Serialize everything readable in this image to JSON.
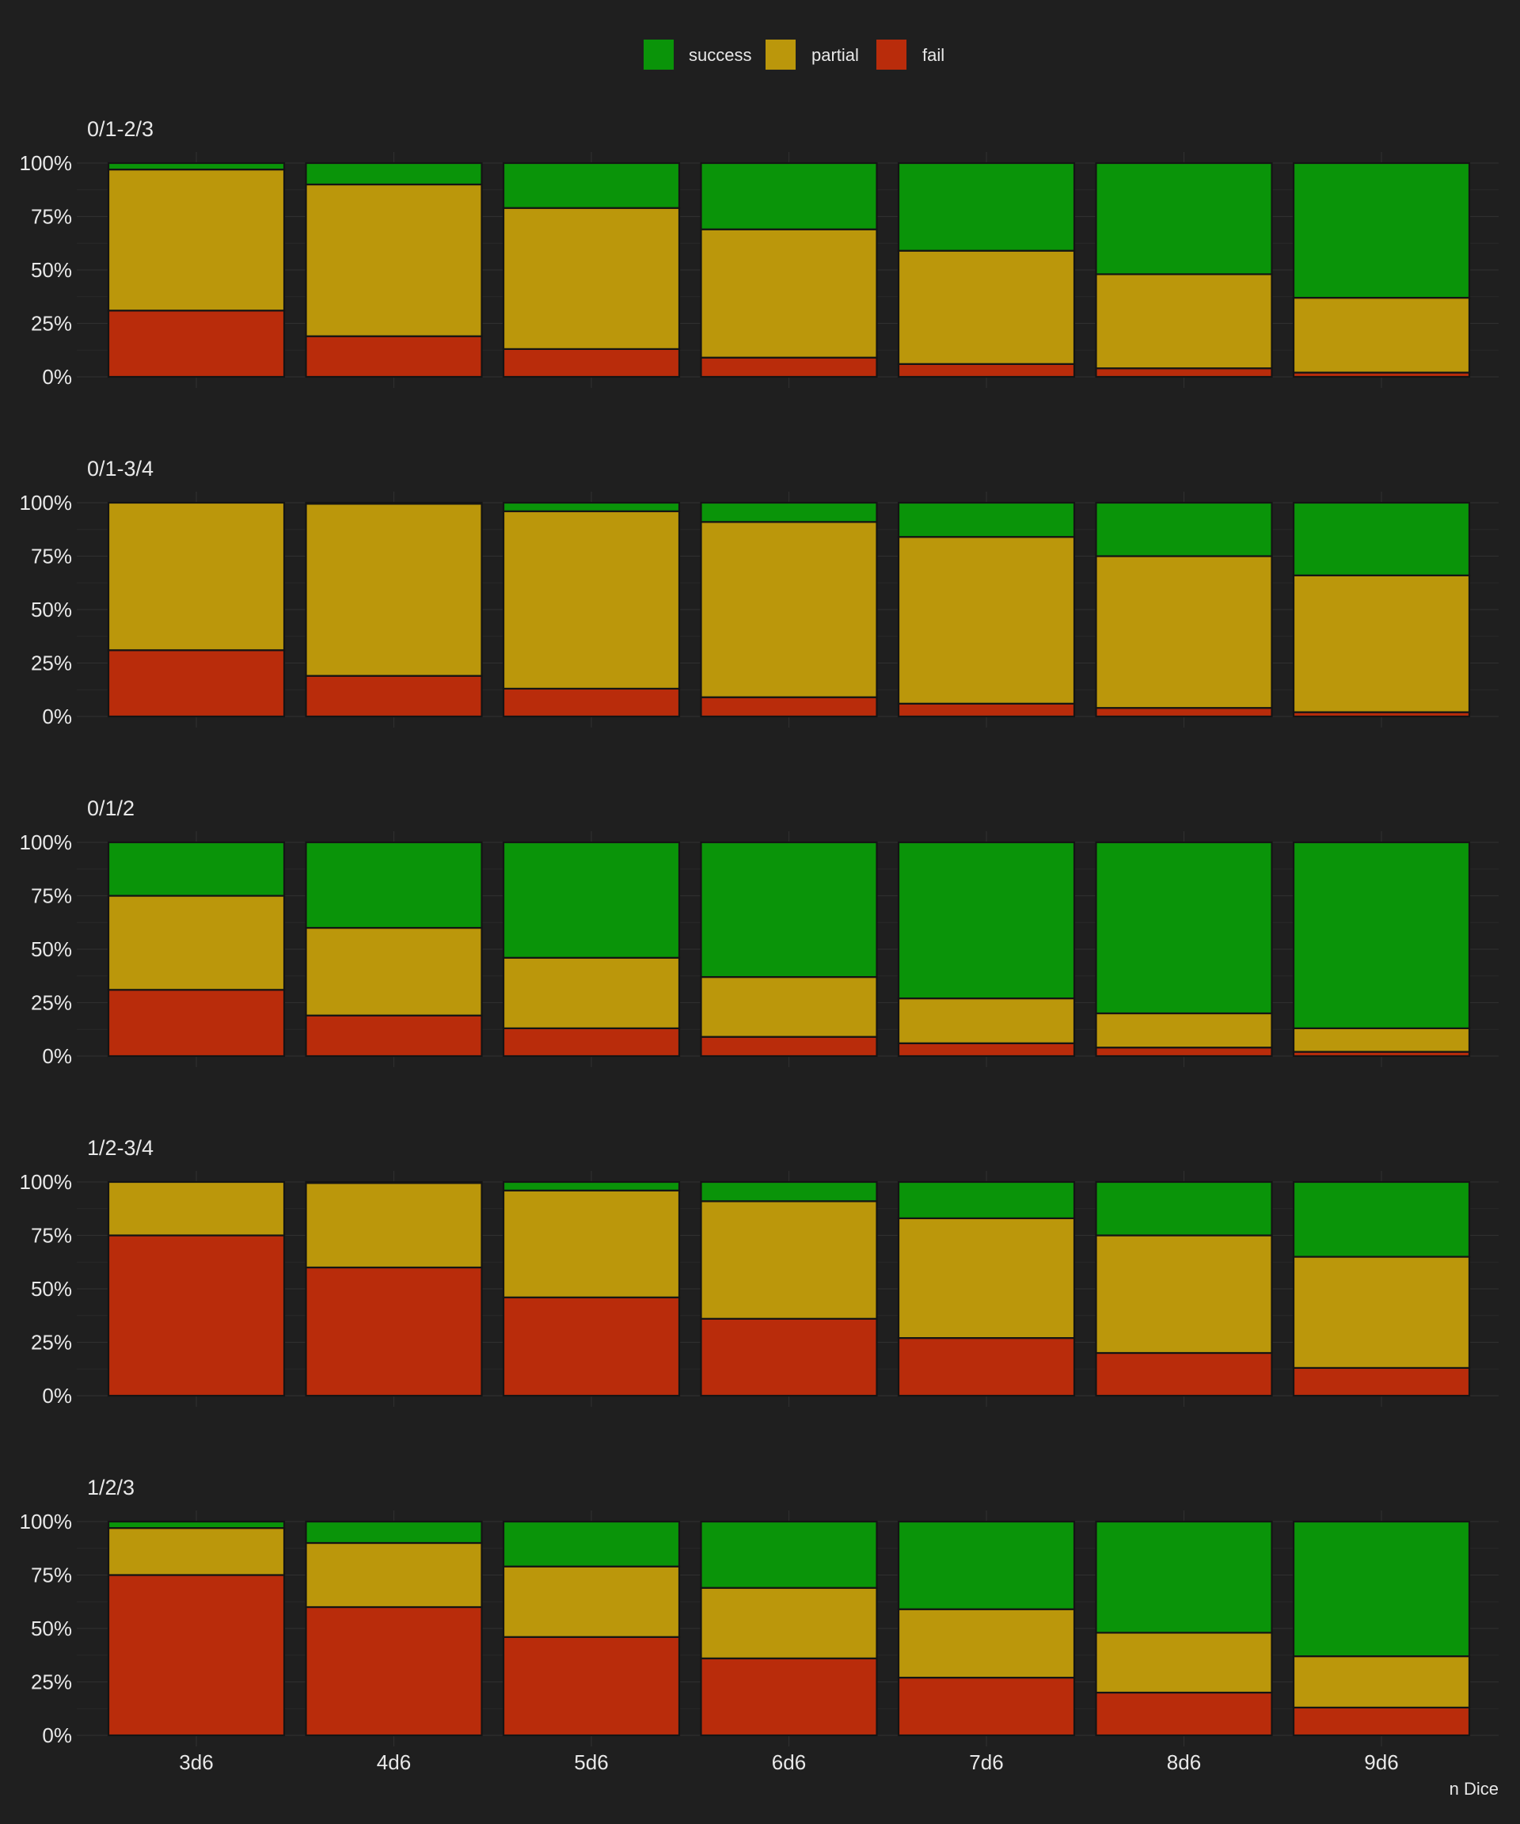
{
  "chart_data": {
    "type": "bar",
    "stacked": true,
    "categories": [
      "3d6",
      "4d6",
      "5d6",
      "6d6",
      "7d6",
      "8d6",
      "9d6"
    ],
    "xlabel": "n Dice",
    "ylabel": "",
    "ylim": [
      0,
      1
    ],
    "y_ticks": [
      "0%",
      "25%",
      "50%",
      "75%",
      "100%"
    ],
    "grid": true,
    "legend": {
      "position": "top",
      "entries": [
        {
          "name": "success",
          "color": "#0a9409"
        },
        {
          "name": "partial",
          "color": "#bb970b"
        },
        {
          "name": "fail",
          "color": "#b92c0b"
        }
      ]
    },
    "panels": [
      {
        "title": "0/1-2/3",
        "series": [
          {
            "name": "fail",
            "values": [
              0.31,
              0.19,
              0.13,
              0.09,
              0.06,
              0.04,
              0.02
            ]
          },
          {
            "name": "partial",
            "values": [
              0.66,
              0.71,
              0.66,
              0.6,
              0.53,
              0.44,
              0.35
            ]
          },
          {
            "name": "success",
            "values": [
              0.03,
              0.1,
              0.21,
              0.31,
              0.41,
              0.52,
              0.63
            ]
          }
        ]
      },
      {
        "title": "0/1-3/4",
        "series": [
          {
            "name": "fail",
            "values": [
              0.31,
              0.19,
              0.13,
              0.09,
              0.06,
              0.04,
              0.02
            ]
          },
          {
            "name": "partial",
            "values": [
              0.69,
              0.805,
              0.83,
              0.82,
              0.78,
              0.71,
              0.64
            ]
          },
          {
            "name": "success",
            "values": [
              0.0,
              0.005,
              0.04,
              0.09,
              0.16,
              0.25,
              0.34
            ]
          }
        ]
      },
      {
        "title": "0/1/2",
        "series": [
          {
            "name": "fail",
            "values": [
              0.31,
              0.19,
              0.13,
              0.09,
              0.06,
              0.04,
              0.02
            ]
          },
          {
            "name": "partial",
            "values": [
              0.44,
              0.41,
              0.33,
              0.28,
              0.21,
              0.16,
              0.11
            ]
          },
          {
            "name": "success",
            "values": [
              0.25,
              0.4,
              0.54,
              0.63,
              0.73,
              0.8,
              0.87
            ]
          }
        ]
      },
      {
        "title": "1/2-3/4",
        "series": [
          {
            "name": "fail",
            "values": [
              0.75,
              0.6,
              0.46,
              0.36,
              0.27,
              0.2,
              0.13
            ]
          },
          {
            "name": "partial",
            "values": [
              0.25,
              0.395,
              0.5,
              0.55,
              0.56,
              0.55,
              0.52
            ]
          },
          {
            "name": "success",
            "values": [
              0.0,
              0.005,
              0.04,
              0.09,
              0.17,
              0.25,
              0.35
            ]
          }
        ]
      },
      {
        "title": "1/2/3",
        "series": [
          {
            "name": "fail",
            "values": [
              0.75,
              0.6,
              0.46,
              0.36,
              0.27,
              0.2,
              0.13
            ]
          },
          {
            "name": "partial",
            "values": [
              0.22,
              0.3,
              0.33,
              0.33,
              0.32,
              0.28,
              0.24
            ]
          },
          {
            "name": "success",
            "values": [
              0.03,
              0.1,
              0.21,
              0.31,
              0.41,
              0.52,
              0.63
            ]
          }
        ]
      }
    ]
  }
}
